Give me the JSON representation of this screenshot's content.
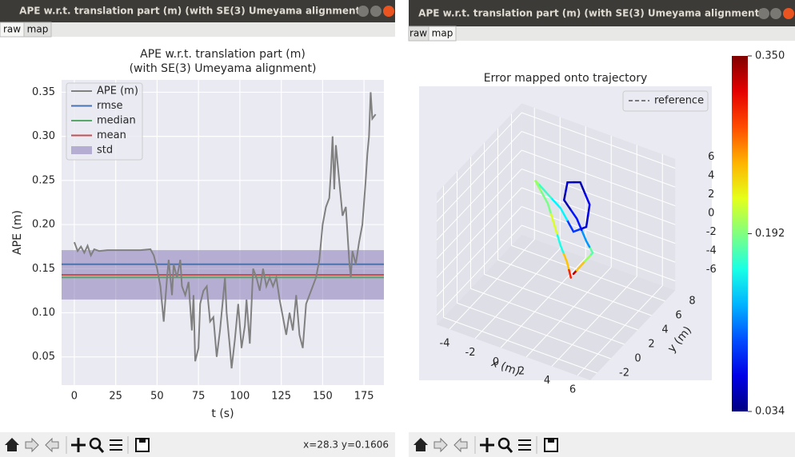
{
  "windows": [
    {
      "title": "APE w.r.t. translation part (m) (with SE(3) Umeyama alignment)",
      "tabs": [
        "raw",
        "map"
      ],
      "status": "x=28.3 y=0.1606"
    },
    {
      "title": "APE w.r.t. translation part (m) (with SE(3) Umeyama alignment)",
      "tabs": [
        "raw",
        "map"
      ]
    }
  ],
  "chart_data": [
    {
      "type": "line",
      "title": [
        "APE w.r.t. translation part (m)",
        "(with SE(3) Umeyama alignment)"
      ],
      "x_label": "t (s)",
      "y_label": "APE (m)",
      "xlim": [
        -7.7,
        187
      ],
      "xticks": [
        0,
        25,
        50,
        75,
        100,
        125,
        150,
        175
      ],
      "ylim": [
        0.018,
        0.364
      ],
      "yticks": [
        0.05,
        {
          "value": 0.1,
          "label": "0.10"
        },
        0.15,
        {
          "value": 0.2,
          "label": "0.20"
        },
        0.25,
        {
          "value": 0.3,
          "label": "0.30"
        },
        0.35
      ],
      "grid": true,
      "x": [
        0,
        2,
        4,
        6,
        8,
        10,
        12,
        15,
        20,
        30,
        40,
        46,
        48,
        50,
        52,
        54,
        56,
        57,
        59,
        60,
        62,
        64,
        65,
        67,
        69,
        71,
        72,
        73,
        75,
        76,
        78,
        80,
        82,
        84,
        86,
        88,
        90,
        91,
        92,
        94,
        95,
        97,
        99,
        101,
        103,
        104,
        106,
        108,
        110,
        112,
        114,
        116,
        118,
        120,
        122,
        124,
        126,
        128,
        130,
        132,
        134,
        136,
        138,
        140,
        143,
        146,
        148,
        150,
        152,
        154,
        155,
        156,
        157,
        158,
        160,
        162,
        164,
        166,
        167,
        168,
        170,
        172,
        174,
        176,
        177,
        178,
        179,
        180,
        182
      ],
      "series": [
        {
          "name": "APE (m)",
          "color": "#808080",
          "values": [
            0.18,
            0.17,
            0.175,
            0.168,
            0.176,
            0.165,
            0.172,
            0.17,
            0.171,
            0.171,
            0.171,
            0.172,
            0.165,
            0.15,
            0.13,
            0.09,
            0.14,
            0.16,
            0.12,
            0.155,
            0.14,
            0.16,
            0.13,
            0.12,
            0.135,
            0.08,
            0.12,
            0.045,
            0.06,
            0.11,
            0.125,
            0.13,
            0.09,
            0.095,
            0.05,
            0.08,
            0.12,
            0.14,
            0.1,
            0.06,
            0.037,
            0.07,
            0.11,
            0.06,
            0.085,
            0.115,
            0.065,
            0.15,
            0.14,
            0.125,
            0.15,
            0.13,
            0.14,
            0.13,
            0.14,
            0.115,
            0.095,
            0.075,
            0.1,
            0.08,
            0.12,
            0.075,
            0.06,
            0.11,
            0.125,
            0.14,
            0.16,
            0.2,
            0.22,
            0.23,
            0.26,
            0.3,
            0.24,
            0.29,
            0.25,
            0.21,
            0.22,
            0.16,
            0.14,
            0.17,
            0.155,
            0.18,
            0.2,
            0.25,
            0.28,
            0.3,
            0.35,
            0.32,
            0.325
          ]
        }
      ],
      "lines": [
        {
          "name": "rmse",
          "color": "#4c72b0",
          "value": 0.155
        },
        {
          "name": "median",
          "color": "#55a868",
          "value": 0.14
        },
        {
          "name": "mean",
          "color": "#c44e52",
          "value": 0.143
        }
      ],
      "band": {
        "name": "std",
        "color": "#8172b2",
        "value": 0.028
      },
      "legend": "upper left"
    },
    {
      "type": "trajectory3d",
      "title": "Error mapped onto trajectory",
      "x_label": "x (m)",
      "y_label": "y (m)",
      "legend": [
        {
          "name": "reference",
          "color": "#555555"
        }
      ],
      "xticks": [
        -4,
        -2,
        0,
        2,
        4,
        6
      ],
      "yticks": [
        -2,
        0,
        2,
        4,
        6,
        8
      ],
      "zticks": [
        -6,
        -4,
        -2,
        0,
        2,
        4,
        6
      ],
      "xlim": [
        -5,
        7
      ],
      "ylim": [
        -3,
        9.5
      ],
      "zlim": [
        -7,
        7
      ],
      "colorbar": {
        "clim": [
          0.034,
          0.35
        ],
        "ticks": [
          {
            "value": 0.35,
            "label": "0.350"
          },
          0.192,
          0.034
        ]
      },
      "trajectory": {
        "x": [
          2.5,
          3,
          3.5,
          4,
          3.5,
          2.5,
          1.5,
          1.5,
          2.5,
          3.5,
          3.5,
          2.5,
          1.5,
          0,
          -0.5,
          0.5,
          1,
          1.5,
          2,
          2.3
        ],
        "y": [
          3,
          3,
          3.5,
          3,
          3,
          3.5,
          3.5,
          4,
          4,
          3.5,
          3,
          3,
          3,
          3,
          3,
          3,
          3,
          3,
          3,
          3
        ],
        "z": [
          -2.5,
          -1.5,
          -0.5,
          0.5,
          1.5,
          3,
          4.5,
          6,
          6.5,
          5,
          3,
          2,
          4,
          5.5,
          6,
          4,
          2,
          0,
          -1.5,
          -3
        ],
        "error": [
          0.33,
          0.25,
          0.2,
          0.18,
          0.12,
          0.08,
          0.05,
          0.06,
          0.05,
          0.07,
          0.06,
          0.09,
          0.15,
          0.17,
          0.2,
          0.19,
          0.22,
          0.16,
          0.25,
          0.3
        ]
      }
    }
  ]
}
